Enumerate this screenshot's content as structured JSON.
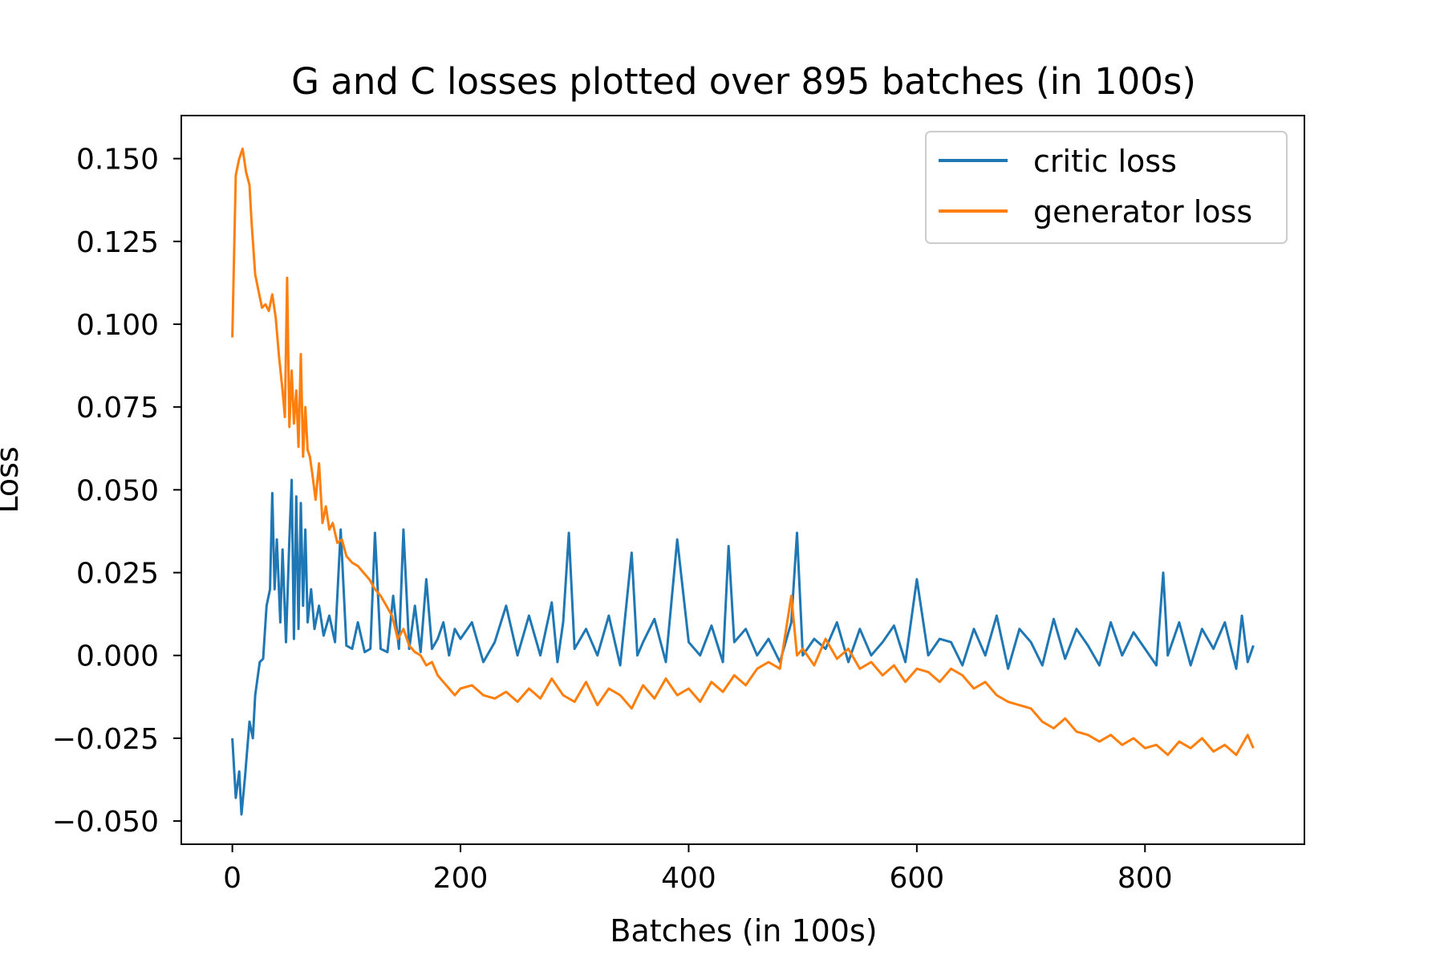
{
  "chart_data": {
    "type": "line",
    "title": "G and C losses plotted over 895 batches (in 100s)",
    "xlabel": "Batches (in 100s)",
    "ylabel": "Loss",
    "xlim": [
      -44.75,
      939.75
    ],
    "ylim": [
      -0.057,
      0.163
    ],
    "xticks": [
      0,
      200,
      400,
      600,
      800
    ],
    "yticks": [
      0.15,
      0.125,
      0.1,
      0.075,
      0.05,
      0.025,
      0.0,
      -0.025,
      -0.05
    ],
    "xtick_labels": [
      "0",
      "200",
      "400",
      "600",
      "800"
    ],
    "ytick_labels": [
      "0.150",
      "0.125",
      "0.100",
      "0.075",
      "0.050",
      "0.025",
      "0.000",
      "−0.025",
      "−0.050"
    ],
    "grid": false,
    "legend": {
      "position": "top-right"
    },
    "colors": {
      "critic": "#1f77b4",
      "generator": "#ff7f0e"
    },
    "series": [
      {
        "name": "critic loss",
        "color": "#1f77b4",
        "points": [
          [
            0,
            -0.025
          ],
          [
            3,
            -0.043
          ],
          [
            6,
            -0.035
          ],
          [
            8,
            -0.048
          ],
          [
            11,
            -0.037
          ],
          [
            15,
            -0.02
          ],
          [
            18,
            -0.025
          ],
          [
            20,
            -0.012
          ],
          [
            24,
            -0.002
          ],
          [
            27,
            -0.001
          ],
          [
            30,
            0.015
          ],
          [
            33,
            0.02
          ],
          [
            35,
            0.049
          ],
          [
            37,
            0.02
          ],
          [
            39,
            0.035
          ],
          [
            42,
            0.01
          ],
          [
            44,
            0.032
          ],
          [
            47,
            0.004
          ],
          [
            50,
            0.035
          ],
          [
            52,
            0.053
          ],
          [
            54,
            0.005
          ],
          [
            56,
            0.048
          ],
          [
            58,
            0.008
          ],
          [
            60,
            0.046
          ],
          [
            62,
            0.015
          ],
          [
            64,
            0.038
          ],
          [
            66,
            0.01
          ],
          [
            69,
            0.02
          ],
          [
            72,
            0.008
          ],
          [
            76,
            0.015
          ],
          [
            80,
            0.006
          ],
          [
            85,
            0.012
          ],
          [
            90,
            0.004
          ],
          [
            95,
            0.038
          ],
          [
            100,
            0.003
          ],
          [
            105,
            0.002
          ],
          [
            110,
            0.01
          ],
          [
            116,
            0.001
          ],
          [
            121,
            0.002
          ],
          [
            125,
            0.037
          ],
          [
            130,
            0.002
          ],
          [
            136,
            0.001
          ],
          [
            141,
            0.018
          ],
          [
            146,
            0.002
          ],
          [
            150,
            0.038
          ],
          [
            155,
            0.002
          ],
          [
            160,
            0.015
          ],
          [
            165,
            0.001
          ],
          [
            170,
            0.023
          ],
          [
            175,
            0.002
          ],
          [
            180,
            0.005
          ],
          [
            185,
            0.01
          ],
          [
            190,
            0.0
          ],
          [
            195,
            0.008
          ],
          [
            200,
            0.005
          ],
          [
            210,
            0.01
          ],
          [
            220,
            -0.002
          ],
          [
            230,
            0.004
          ],
          [
            240,
            0.015
          ],
          [
            250,
            0.0
          ],
          [
            260,
            0.012
          ],
          [
            270,
            0.0
          ],
          [
            280,
            0.016
          ],
          [
            285,
            -0.002
          ],
          [
            290,
            0.01
          ],
          [
            295,
            0.037
          ],
          [
            300,
            0.002
          ],
          [
            310,
            0.008
          ],
          [
            320,
            0.0
          ],
          [
            330,
            0.012
          ],
          [
            340,
            -0.003
          ],
          [
            350,
            0.031
          ],
          [
            355,
            0.0
          ],
          [
            360,
            0.004
          ],
          [
            370,
            0.011
          ],
          [
            380,
            -0.002
          ],
          [
            390,
            0.035
          ],
          [
            400,
            0.004
          ],
          [
            410,
            0.0
          ],
          [
            420,
            0.009
          ],
          [
            430,
            -0.002
          ],
          [
            435,
            0.033
          ],
          [
            440,
            0.004
          ],
          [
            450,
            0.008
          ],
          [
            460,
            0.0
          ],
          [
            470,
            0.005
          ],
          [
            480,
            -0.002
          ],
          [
            490,
            0.01
          ],
          [
            495,
            0.037
          ],
          [
            500,
            0.0
          ],
          [
            510,
            0.005
          ],
          [
            520,
            0.002
          ],
          [
            530,
            0.01
          ],
          [
            540,
            -0.002
          ],
          [
            550,
            0.008
          ],
          [
            560,
            0.0
          ],
          [
            570,
            0.004
          ],
          [
            580,
            0.009
          ],
          [
            590,
            -0.002
          ],
          [
            600,
            0.023
          ],
          [
            610,
            0.0
          ],
          [
            620,
            0.005
          ],
          [
            630,
            0.004
          ],
          [
            640,
            -0.003
          ],
          [
            650,
            0.008
          ],
          [
            660,
            0.0
          ],
          [
            670,
            0.012
          ],
          [
            680,
            -0.004
          ],
          [
            690,
            0.008
          ],
          [
            700,
            0.004
          ],
          [
            710,
            -0.003
          ],
          [
            720,
            0.011
          ],
          [
            730,
            -0.001
          ],
          [
            740,
            0.008
          ],
          [
            750,
            0.003
          ],
          [
            760,
            -0.003
          ],
          [
            770,
            0.01
          ],
          [
            780,
            0.0
          ],
          [
            790,
            0.007
          ],
          [
            800,
            0.002
          ],
          [
            810,
            -0.003
          ],
          [
            816,
            0.025
          ],
          [
            820,
            0.0
          ],
          [
            830,
            0.01
          ],
          [
            840,
            -0.003
          ],
          [
            850,
            0.008
          ],
          [
            860,
            0.002
          ],
          [
            870,
            0.01
          ],
          [
            880,
            -0.004
          ],
          [
            885,
            0.012
          ],
          [
            890,
            -0.002
          ],
          [
            895,
            0.003
          ]
        ]
      },
      {
        "name": "generator loss",
        "color": "#ff7f0e",
        "points": [
          [
            0,
            0.096
          ],
          [
            3,
            0.145
          ],
          [
            6,
            0.15
          ],
          [
            9,
            0.153
          ],
          [
            12,
            0.146
          ],
          [
            15,
            0.142
          ],
          [
            17,
            0.13
          ],
          [
            20,
            0.115
          ],
          [
            23,
            0.11
          ],
          [
            26,
            0.105
          ],
          [
            29,
            0.106
          ],
          [
            32,
            0.104
          ],
          [
            35,
            0.109
          ],
          [
            38,
            0.102
          ],
          [
            41,
            0.09
          ],
          [
            44,
            0.08
          ],
          [
            46,
            0.072
          ],
          [
            48,
            0.114
          ],
          [
            50,
            0.069
          ],
          [
            52,
            0.086
          ],
          [
            54,
            0.07
          ],
          [
            56,
            0.08
          ],
          [
            58,
            0.063
          ],
          [
            60,
            0.091
          ],
          [
            62,
            0.06
          ],
          [
            64,
            0.075
          ],
          [
            66,
            0.062
          ],
          [
            68,
            0.06
          ],
          [
            70,
            0.055
          ],
          [
            73,
            0.047
          ],
          [
            76,
            0.058
          ],
          [
            79,
            0.04
          ],
          [
            82,
            0.045
          ],
          [
            85,
            0.038
          ],
          [
            88,
            0.04
          ],
          [
            92,
            0.034
          ],
          [
            96,
            0.035
          ],
          [
            100,
            0.03
          ],
          [
            105,
            0.028
          ],
          [
            110,
            0.027
          ],
          [
            115,
            0.025
          ],
          [
            120,
            0.023
          ],
          [
            125,
            0.02
          ],
          [
            130,
            0.018
          ],
          [
            135,
            0.015
          ],
          [
            140,
            0.012
          ],
          [
            145,
            0.005
          ],
          [
            150,
            0.008
          ],
          [
            155,
            0.003
          ],
          [
            160,
            0.001
          ],
          [
            165,
            0.0
          ],
          [
            170,
            -0.003
          ],
          [
            175,
            -0.002
          ],
          [
            180,
            -0.006
          ],
          [
            185,
            -0.008
          ],
          [
            190,
            -0.01
          ],
          [
            195,
            -0.012
          ],
          [
            200,
            -0.01
          ],
          [
            210,
            -0.009
          ],
          [
            220,
            -0.012
          ],
          [
            230,
            -0.013
          ],
          [
            240,
            -0.011
          ],
          [
            250,
            -0.014
          ],
          [
            260,
            -0.01
          ],
          [
            270,
            -0.013
          ],
          [
            280,
            -0.007
          ],
          [
            290,
            -0.012
          ],
          [
            300,
            -0.014
          ],
          [
            310,
            -0.008
          ],
          [
            320,
            -0.015
          ],
          [
            330,
            -0.01
          ],
          [
            340,
            -0.012
          ],
          [
            350,
            -0.016
          ],
          [
            360,
            -0.009
          ],
          [
            370,
            -0.013
          ],
          [
            380,
            -0.007
          ],
          [
            390,
            -0.012
          ],
          [
            400,
            -0.01
          ],
          [
            410,
            -0.014
          ],
          [
            420,
            -0.008
          ],
          [
            430,
            -0.011
          ],
          [
            440,
            -0.006
          ],
          [
            450,
            -0.009
          ],
          [
            460,
            -0.004
          ],
          [
            470,
            -0.002
          ],
          [
            480,
            -0.004
          ],
          [
            490,
            0.018
          ],
          [
            495,
            0.0
          ],
          [
            500,
            0.002
          ],
          [
            510,
            -0.003
          ],
          [
            520,
            0.005
          ],
          [
            530,
            -0.001
          ],
          [
            540,
            0.002
          ],
          [
            550,
            -0.004
          ],
          [
            560,
            -0.002
          ],
          [
            570,
            -0.006
          ],
          [
            580,
            -0.003
          ],
          [
            590,
            -0.008
          ],
          [
            600,
            -0.004
          ],
          [
            610,
            -0.005
          ],
          [
            620,
            -0.008
          ],
          [
            630,
            -0.004
          ],
          [
            640,
            -0.006
          ],
          [
            650,
            -0.01
          ],
          [
            660,
            -0.008
          ],
          [
            670,
            -0.012
          ],
          [
            680,
            -0.014
          ],
          [
            690,
            -0.015
          ],
          [
            700,
            -0.016
          ],
          [
            710,
            -0.02
          ],
          [
            720,
            -0.022
          ],
          [
            730,
            -0.019
          ],
          [
            740,
            -0.023
          ],
          [
            750,
            -0.024
          ],
          [
            760,
            -0.026
          ],
          [
            770,
            -0.024
          ],
          [
            780,
            -0.027
          ],
          [
            790,
            -0.025
          ],
          [
            800,
            -0.028
          ],
          [
            810,
            -0.027
          ],
          [
            820,
            -0.03
          ],
          [
            830,
            -0.026
          ],
          [
            840,
            -0.028
          ],
          [
            850,
            -0.025
          ],
          [
            860,
            -0.029
          ],
          [
            870,
            -0.027
          ],
          [
            880,
            -0.03
          ],
          [
            890,
            -0.024
          ],
          [
            895,
            -0.028
          ]
        ]
      }
    ]
  }
}
